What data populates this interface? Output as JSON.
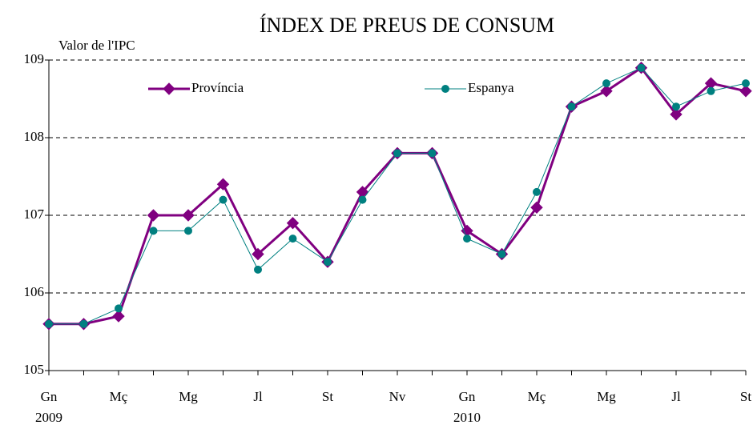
{
  "chart_data": {
    "type": "line",
    "title": "ÍNDEX DE PREUS DE CONSUM",
    "y_label": "Valor de l'IPC",
    "categories": [
      "Gn",
      null,
      "Mç",
      null,
      "Mg",
      null,
      "Jl",
      null,
      "St",
      null,
      "Nv",
      null,
      "Gn",
      null,
      "Mç",
      null,
      "Mg",
      null,
      "Jl",
      null,
      "St"
    ],
    "category_years": [
      "2009",
      null,
      null,
      null,
      null,
      null,
      null,
      null,
      null,
      null,
      null,
      null,
      "2010",
      null,
      null,
      null,
      null,
      null,
      null,
      null,
      null
    ],
    "series": [
      {
        "name": "Província",
        "color": "#800080",
        "marker": "diamond",
        "values": [
          105.6,
          105.6,
          105.7,
          107.0,
          107.0,
          107.4,
          106.5,
          106.9,
          106.4,
          107.3,
          107.8,
          107.8,
          106.8,
          106.5,
          107.1,
          108.4,
          108.6,
          108.9,
          108.3,
          108.7,
          108.6
        ]
      },
      {
        "name": "Espanya",
        "color": "#008080",
        "marker": "circle",
        "values": [
          105.6,
          105.6,
          105.8,
          106.8,
          106.8,
          107.2,
          106.3,
          106.7,
          106.4,
          107.2,
          107.8,
          107.8,
          106.7,
          106.5,
          107.3,
          108.4,
          108.7,
          108.9,
          108.4,
          108.6,
          108.7
        ]
      }
    ],
    "ylim": [
      105,
      109
    ],
    "yticks": [
      105,
      106,
      107,
      108,
      109
    ],
    "grid": true,
    "legend": "top"
  }
}
